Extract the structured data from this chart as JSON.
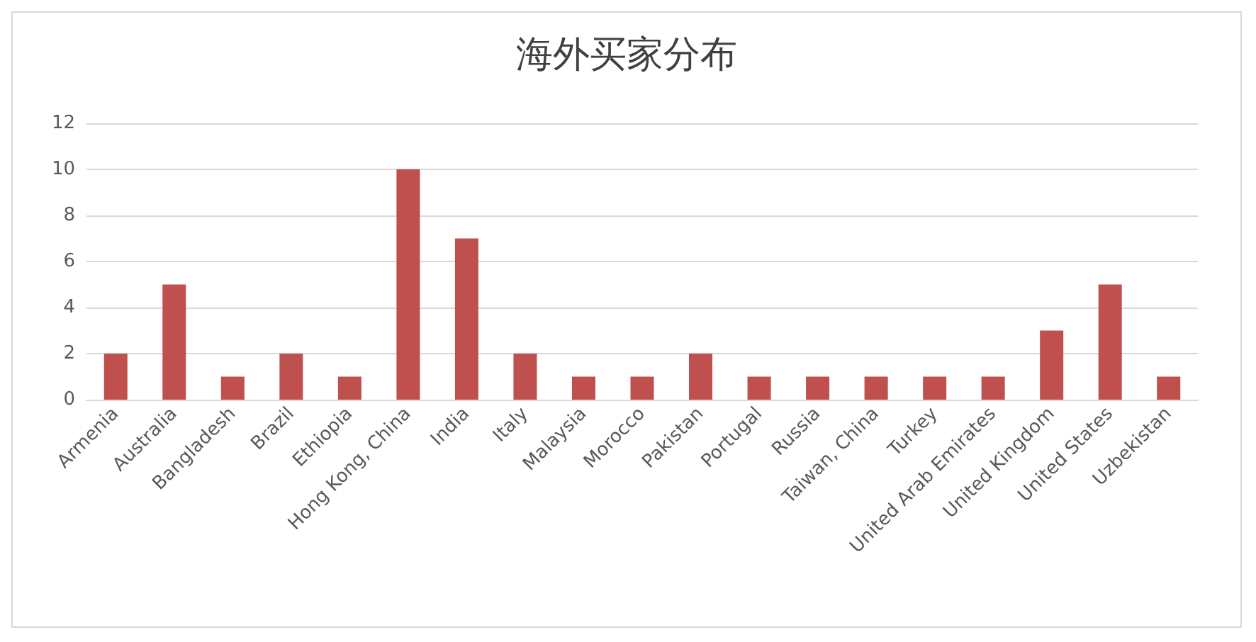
{
  "chart_data": {
    "type": "bar",
    "title": "海外买家分布",
    "categories": [
      "Armenia",
      "Australia",
      "Bangladesh",
      "Brazil",
      "Ethiopia",
      "Hong Kong, China",
      "India",
      "Italy",
      "Malaysia",
      "Morocco",
      "Pakistan",
      "Portugal",
      "Russia",
      "Taiwan, China",
      "Turkey",
      "United Arab Emirates",
      "United Kingdom",
      "United States",
      "Uzbekistan"
    ],
    "values": [
      2,
      5,
      1,
      2,
      1,
      10,
      7,
      2,
      1,
      1,
      2,
      1,
      1,
      1,
      1,
      1,
      3,
      5,
      1
    ],
    "color": "#c0504d",
    "ylim": [
      0,
      12
    ],
    "yticks": [
      0,
      2,
      4,
      6,
      8,
      10,
      12
    ],
    "grid": "y"
  }
}
